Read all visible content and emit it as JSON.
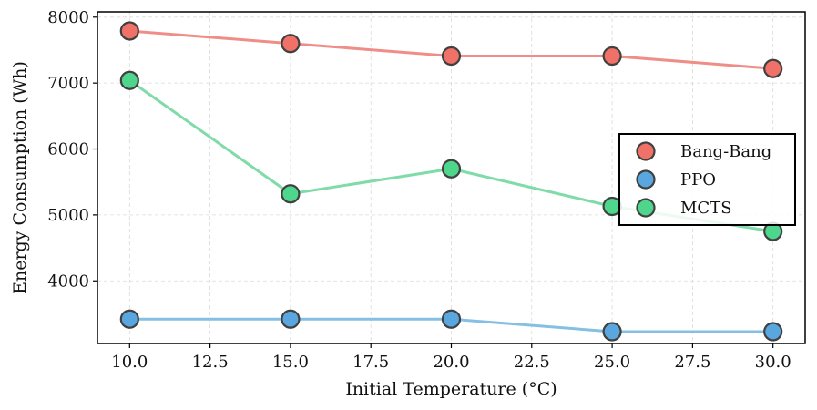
{
  "chart_data": {
    "type": "line",
    "title": "",
    "xlabel": "Initial Temperature (°C)",
    "ylabel": "Energy Consumption (Wh)",
    "x": [
      10,
      15,
      20,
      25,
      30
    ],
    "xlim": [
      9.0,
      31.0
    ],
    "ylim": [
      3050,
      8080
    ],
    "xticks": [
      10.0,
      12.5,
      15.0,
      17.5,
      20.0,
      22.5,
      25.0,
      27.5,
      30.0
    ],
    "xtick_labels": [
      "10.0",
      "12.5",
      "15.0",
      "17.5",
      "20.0",
      "22.5",
      "25.0",
      "27.5",
      "30.0"
    ],
    "yticks": [
      4000,
      5000,
      6000,
      7000,
      8000
    ],
    "ytick_labels": [
      "4000",
      "5000",
      "6000",
      "7000",
      "8000"
    ],
    "grid": true,
    "legend_position": "center-right",
    "series": [
      {
        "name": "Bang-Bang",
        "values": [
          7790,
          7600,
          7410,
          7410,
          7220
        ],
        "line_color": "#ef8e86",
        "marker_color": "#f07167"
      },
      {
        "name": "PPO",
        "values": [
          3420,
          3420,
          3420,
          3230,
          3230
        ],
        "line_color": "#85bfe4",
        "marker_color": "#5aa7df"
      },
      {
        "name": "MCTS",
        "values": [
          7040,
          5320,
          5700,
          5130,
          4750
        ],
        "line_color": "#80dba8",
        "marker_color": "#4dd68c"
      }
    ]
  }
}
